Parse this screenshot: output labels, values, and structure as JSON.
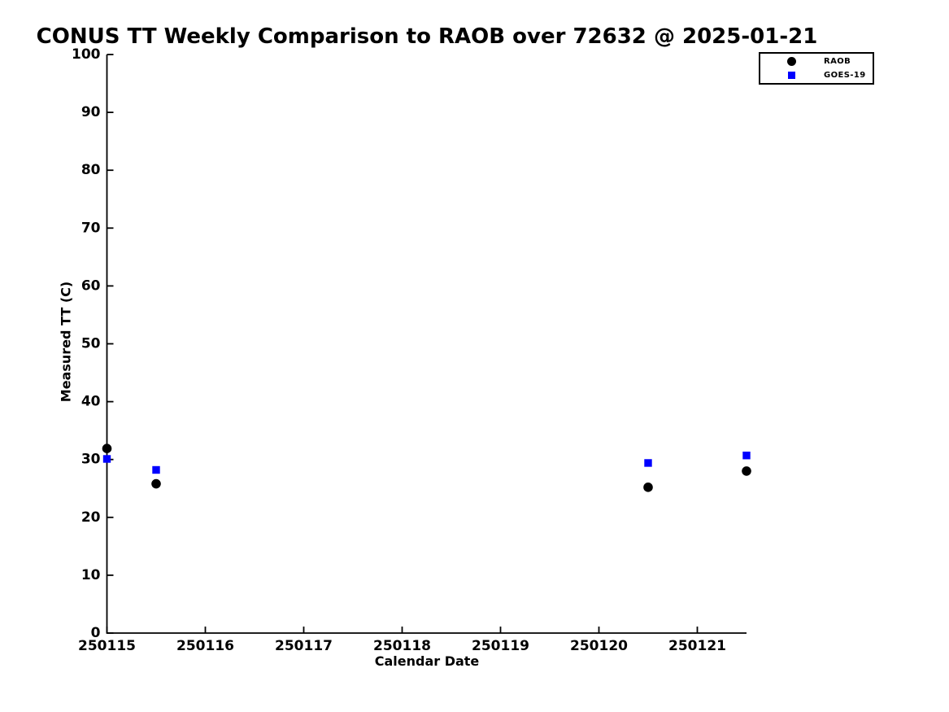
{
  "chart_data": {
    "type": "scatter",
    "title": "CONUS TT Weekly Comparison to RAOB over 72632 @ 2025-01-21",
    "xlabel": "Calendar Date",
    "ylabel": "Measured TT (C)",
    "xlim": [
      250115,
      250121.5
    ],
    "ylim": [
      0,
      100
    ],
    "x_ticks": [
      "250115",
      "250116",
      "250117",
      "250118",
      "250119",
      "250120",
      "250121"
    ],
    "y_ticks": [
      0,
      10,
      20,
      30,
      40,
      50,
      60,
      70,
      80,
      90,
      100
    ],
    "grid": false,
    "legend_position": "top-right",
    "series": [
      {
        "name": "RAOB",
        "marker": "circle",
        "color": "#000000",
        "x": [
          250115.0,
          250115.5,
          250120.5,
          250121.5
        ],
        "y": [
          31.9,
          25.8,
          25.2,
          28.0
        ]
      },
      {
        "name": "GOES-19",
        "marker": "square",
        "color": "#0000ff",
        "x": [
          250115.0,
          250115.5,
          250120.5,
          250121.5
        ],
        "y": [
          30.1,
          28.2,
          29.4,
          30.7
        ]
      }
    ]
  }
}
